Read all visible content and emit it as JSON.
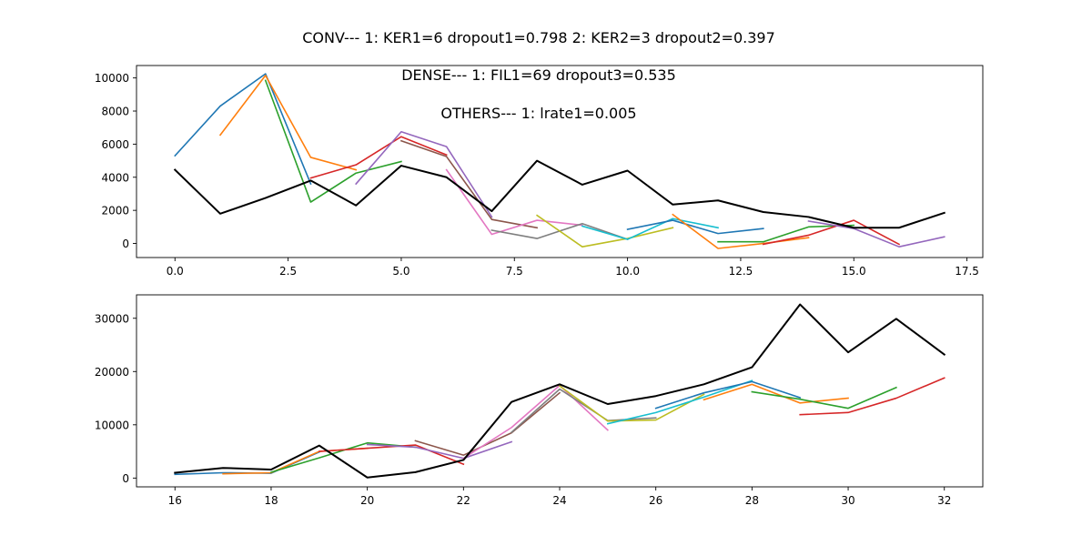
{
  "figure": {
    "title": "CONV--- 1: KER1=6   dropout1=0.798   2: KER2=3   dropout2=0.397",
    "annotations": [
      "DENSE--- 1: FIL1=69   dropout3=0.535",
      "OTHERS--- 1: lrate1=0.005"
    ]
  },
  "chart_data": [
    {
      "type": "line",
      "xlim": [
        -0.85,
        17.85
      ],
      "ylim": [
        -850,
        10750
      ],
      "x_ticks": [
        0.0,
        2.5,
        5.0,
        7.5,
        10.0,
        12.5,
        15.0,
        17.5
      ],
      "x_tick_labels": [
        "0.0",
        "2.5",
        "5.0",
        "7.5",
        "10.0",
        "12.5",
        "15.0",
        "17.5"
      ],
      "y_ticks": [
        0,
        2000,
        4000,
        6000,
        8000,
        10000
      ],
      "y_tick_labels": [
        "0",
        "2000",
        "4000",
        "6000",
        "8000",
        "10000"
      ],
      "grid": false,
      "series": [
        {
          "color": "#1f77b4",
          "x": [
            0,
            1,
            2,
            3
          ],
          "y": [
            5300,
            8300,
            10250,
            3600
          ]
        },
        {
          "color": "#ff7f0e",
          "x": [
            1,
            2,
            3,
            4
          ],
          "y": [
            6550,
            10150,
            5200,
            4450
          ]
        },
        {
          "color": "#2ca02c",
          "x": [
            2,
            3,
            4,
            5
          ],
          "y": [
            9850,
            2500,
            4250,
            4950
          ]
        },
        {
          "color": "#d62728",
          "x": [
            3,
            4,
            5,
            6
          ],
          "y": [
            3950,
            4750,
            6450,
            5350
          ]
        },
        {
          "color": "#9467bd",
          "x": [
            4,
            5,
            6,
            7
          ],
          "y": [
            3600,
            6750,
            5850,
            1600
          ]
        },
        {
          "color": "#8c564b",
          "x": [
            5,
            6,
            7,
            8
          ],
          "y": [
            6200,
            5250,
            1450,
            950
          ]
        },
        {
          "color": "#e377c2",
          "x": [
            6,
            7,
            8,
            9
          ],
          "y": [
            4450,
            550,
            1400,
            1100
          ]
        },
        {
          "color": "#7f7f7f",
          "x": [
            7,
            8,
            9,
            10
          ],
          "y": [
            800,
            300,
            1200,
            250
          ]
        },
        {
          "color": "#bcbd22",
          "x": [
            8,
            9,
            10,
            11
          ],
          "y": [
            1700,
            -200,
            300,
            950
          ]
        },
        {
          "color": "#17becf",
          "x": [
            9,
            10,
            11,
            12
          ],
          "y": [
            1050,
            250,
            1500,
            950
          ]
        },
        {
          "color": "#1f77b4",
          "x": [
            10,
            11,
            12,
            13
          ],
          "y": [
            850,
            1400,
            600,
            900
          ]
        },
        {
          "color": "#ff7f0e",
          "x": [
            11,
            12,
            13,
            14
          ],
          "y": [
            1750,
            -300,
            0,
            350
          ]
        },
        {
          "color": "#2ca02c",
          "x": [
            12,
            13,
            14,
            15
          ],
          "y": [
            100,
            100,
            1000,
            1100
          ]
        },
        {
          "color": "#d62728",
          "x": [
            13,
            14,
            15,
            16
          ],
          "y": [
            -50,
            500,
            1400,
            -50
          ]
        },
        {
          "color": "#9467bd",
          "x": [
            14,
            15,
            16,
            17
          ],
          "y": [
            1350,
            900,
            -200,
            400
          ]
        },
        {
          "color": "#000000",
          "x": [
            0,
            1,
            2,
            3,
            4,
            5,
            6,
            7,
            8,
            9,
            10,
            11,
            12,
            13,
            14,
            15,
            16,
            17
          ],
          "y": [
            4450,
            1800,
            2750,
            3800,
            2300,
            4700,
            4000,
            1950,
            5000,
            3550,
            4400,
            2350,
            2600,
            1900,
            1600,
            950,
            950,
            1850
          ]
        }
      ]
    },
    {
      "type": "line",
      "xlim": [
        15.2,
        32.8
      ],
      "ylim": [
        -1650,
        34400
      ],
      "x_ticks": [
        16,
        18,
        20,
        22,
        24,
        26,
        28,
        30,
        32
      ],
      "x_tick_labels": [
        "16",
        "18",
        "20",
        "22",
        "24",
        "26",
        "28",
        "30",
        "32"
      ],
      "y_ticks": [
        0,
        10000,
        20000,
        30000
      ],
      "y_tick_labels": [
        "0",
        "10000",
        "20000",
        "30000"
      ],
      "grid": false,
      "series": [
        {
          "color": "#1f77b4",
          "x": [
            16,
            17,
            18,
            19
          ],
          "y": [
            700,
            1000,
            900,
            4900
          ]
        },
        {
          "color": "#ff7f0e",
          "x": [
            17,
            18,
            19,
            20
          ],
          "y": [
            800,
            1000,
            5000,
            5600
          ]
        },
        {
          "color": "#2ca02c",
          "x": [
            18,
            19,
            20,
            21
          ],
          "y": [
            1100,
            3800,
            6600,
            5800
          ]
        },
        {
          "color": "#d62728",
          "x": [
            19,
            20,
            21,
            22
          ],
          "y": [
            5000,
            5600,
            6200,
            2600
          ]
        },
        {
          "color": "#9467bd",
          "x": [
            20,
            21,
            22,
            23
          ],
          "y": [
            6300,
            5800,
            3700,
            6800
          ]
        },
        {
          "color": "#8c564b",
          "x": [
            21,
            22,
            23,
            24
          ],
          "y": [
            7000,
            4300,
            8500,
            16000
          ]
        },
        {
          "color": "#e377c2",
          "x": [
            22,
            23,
            24,
            25
          ],
          "y": [
            3700,
            9500,
            17400,
            9000
          ]
        },
        {
          "color": "#7f7f7f",
          "x": [
            23,
            24,
            25,
            26
          ],
          "y": [
            8600,
            16700,
            10800,
            11300
          ]
        },
        {
          "color": "#bcbd22",
          "x": [
            24,
            25,
            26,
            27
          ],
          "y": [
            17300,
            10700,
            10900,
            15700
          ]
        },
        {
          "color": "#17becf",
          "x": [
            25,
            26,
            27,
            28
          ],
          "y": [
            10200,
            12300,
            15200,
            18300
          ]
        },
        {
          "color": "#1f77b4",
          "x": [
            26,
            27,
            28,
            29
          ],
          "y": [
            13100,
            16000,
            18100,
            15100
          ]
        },
        {
          "color": "#ff7f0e",
          "x": [
            27,
            28,
            29,
            30
          ],
          "y": [
            14700,
            17600,
            14100,
            15000
          ]
        },
        {
          "color": "#2ca02c",
          "x": [
            28,
            29,
            30,
            31
          ],
          "y": [
            16200,
            14800,
            13100,
            17000
          ]
        },
        {
          "color": "#d62728",
          "x": [
            29,
            30,
            31,
            32
          ],
          "y": [
            11900,
            12300,
            15000,
            18800
          ]
        },
        {
          "color": "#000000",
          "x": [
            16,
            17,
            18,
            19,
            20,
            21,
            22,
            23,
            24,
            25,
            26,
            27,
            28,
            29,
            30,
            31,
            32
          ],
          "y": [
            1000,
            1900,
            1600,
            6100,
            100,
            1100,
            3400,
            14300,
            17600,
            13900,
            15400,
            17600,
            20800,
            32600,
            23600,
            29900,
            23200
          ]
        }
      ]
    }
  ]
}
